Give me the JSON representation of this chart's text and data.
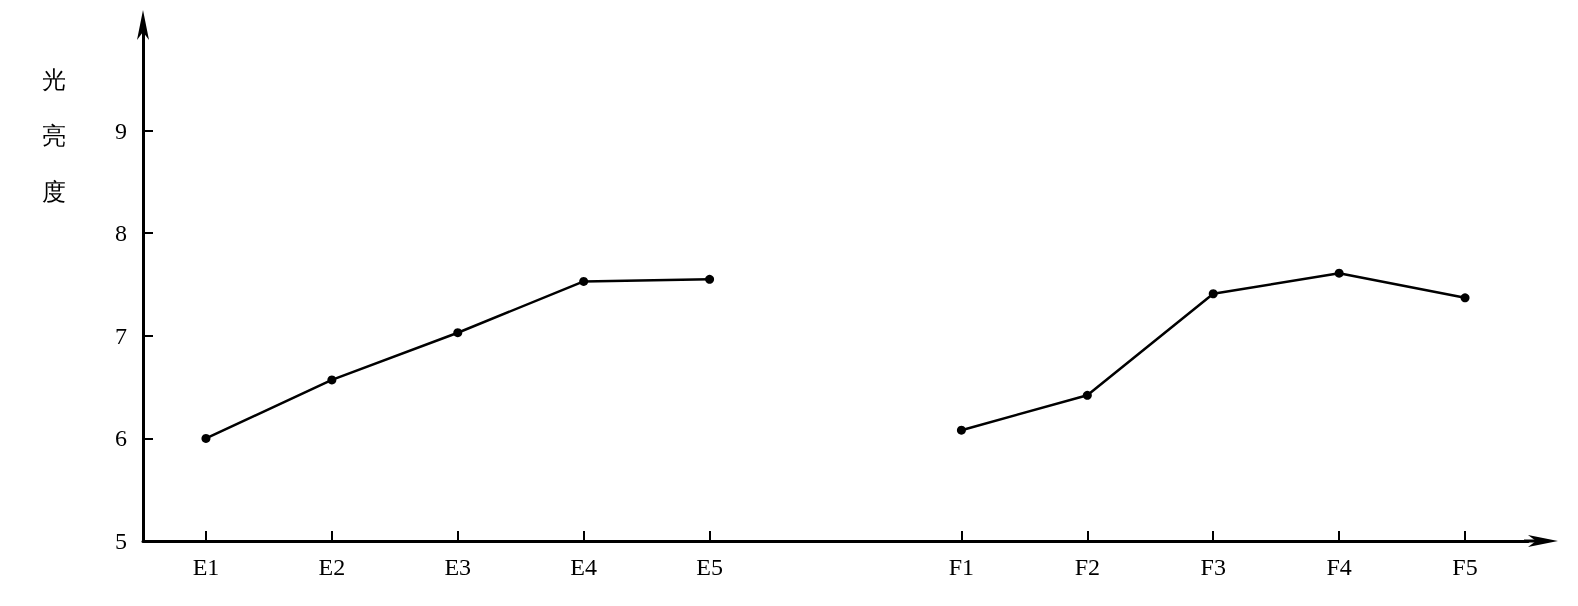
{
  "chart_data": {
    "type": "line",
    "ylabel": "光亮度",
    "categories": [
      "E1",
      "E2",
      "E3",
      "E4",
      "E5",
      null,
      "F1",
      "F2",
      "F3",
      "F4",
      "F5"
    ],
    "series": [
      {
        "color": "#000000",
        "values": [
          6.0,
          6.57,
          7.03,
          7.53,
          7.55,
          null,
          6.08,
          6.42,
          7.41,
          7.61,
          7.37
        ]
      }
    ],
    "ylim": [
      5,
      10
    ],
    "yticks": [
      5,
      6,
      7,
      8,
      9
    ],
    "grid": false,
    "marker": "circle",
    "line_style": "solid"
  }
}
